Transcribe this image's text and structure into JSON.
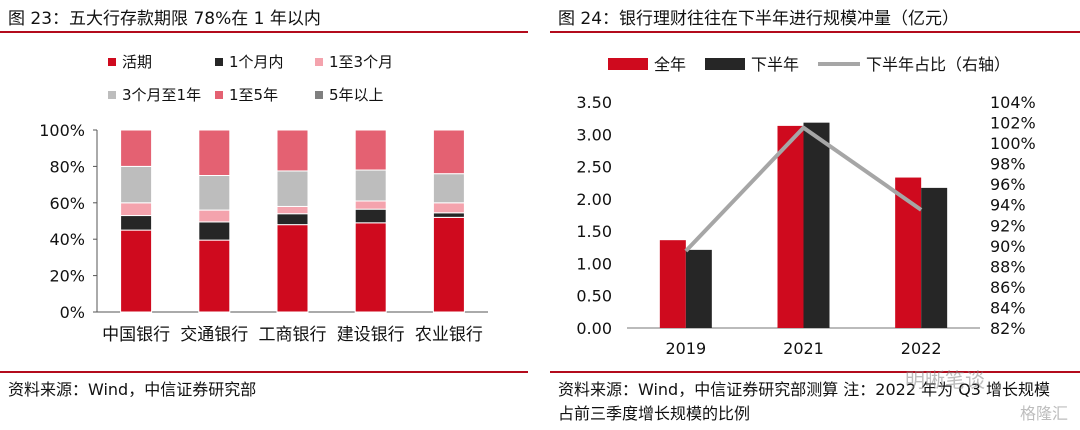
{
  "left": {
    "figure_title": "图 23：五大行存款期限 78%在 1 年以内",
    "source": "资料来源：Wind，中信证券研究部"
  },
  "right": {
    "figure_title": "图 24：银行理财往往在下半年进行规模冲量（亿元）",
    "source_line1": "资料来源：Wind，中信证券研究部测算 注：2022 年为 Q3 增长规模",
    "source_line2": "占前三季度增长规模的比例"
  },
  "watermarks": {
    "wechat": "明晰笔谈",
    "logo": "格隆汇"
  },
  "chart_data": [
    {
      "type": "bar",
      "stacked": true,
      "title": "",
      "categories": [
        "中国银行",
        "交通银行",
        "工商银行",
        "建设银行",
        "农业银行"
      ],
      "series": [
        {
          "name": "活期",
          "color": "#cf0a1e",
          "values": [
            45,
            39.5,
            48,
            49,
            52
          ]
        },
        {
          "name": "1个月内",
          "color": "#262626",
          "values": [
            8,
            10,
            6,
            7.5,
            2.5
          ]
        },
        {
          "name": "1至3个月",
          "color": "#f4a3ad",
          "values": [
            7,
            6.5,
            4,
            4.5,
            5.5
          ]
        },
        {
          "name": "3个月至1年",
          "color": "#bdbdbd",
          "values": [
            20,
            19,
            19.5,
            17,
            16
          ]
        },
        {
          "name": "1至5年",
          "color": "#e46172",
          "values": [
            20,
            25,
            22.5,
            22,
            24
          ]
        },
        {
          "name": "5年以上",
          "color": "#7f7f7f",
          "values": [
            0,
            0,
            0,
            0,
            0
          ]
        }
      ],
      "ylim": [
        0,
        100
      ],
      "yticks": [
        "0%",
        "20%",
        "40%",
        "60%",
        "80%",
        "100%"
      ],
      "legend": "top",
      "grid": false
    },
    {
      "type": "bar",
      "title": "",
      "categories": [
        "2019",
        "2021",
        "2022"
      ],
      "series": [
        {
          "name": "全年",
          "color": "#cf0a1e",
          "axis": "left",
          "values": [
            1.36,
            3.13,
            2.33
          ]
        },
        {
          "name": "下半年",
          "color": "#262626",
          "axis": "left",
          "values": [
            1.21,
            3.18,
            2.17
          ]
        },
        {
          "name": "下半年占比（右轴）",
          "color": "#a6a6a6",
          "axis": "right",
          "type": "line",
          "values": [
            89.5,
            101.5,
            93.5
          ]
        }
      ],
      "ylim_left": [
        0,
        3.5
      ],
      "yticks_left": [
        "0.00",
        "0.50",
        "1.00",
        "1.50",
        "2.00",
        "2.50",
        "3.00",
        "3.50"
      ],
      "ylim_right": [
        82,
        104
      ],
      "yticks_right": [
        "82%",
        "84%",
        "86%",
        "88%",
        "90%",
        "92%",
        "94%",
        "96%",
        "98%",
        "100%",
        "102%",
        "104%"
      ],
      "legend": "top",
      "grid": false
    }
  ]
}
